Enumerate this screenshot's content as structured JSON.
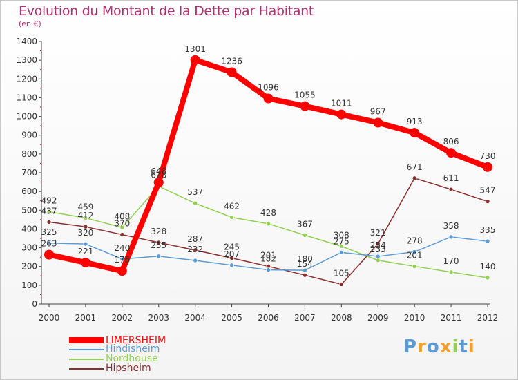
{
  "title": "Evolution du Montant de la Dette par Habitant",
  "subtitle": "(en €)",
  "logo_text": "Proxiti",
  "chart_data": {
    "type": "line",
    "title": "Evolution du Montant de la Dette par Habitant",
    "ylabel": "(en €)",
    "xlabel": "",
    "ylim": [
      0,
      1400
    ],
    "yticks": [
      0,
      100,
      200,
      300,
      400,
      500,
      600,
      700,
      800,
      900,
      1000,
      1100,
      1200,
      1300,
      1400
    ],
    "grid": false,
    "legend_position": "bottom-left",
    "categories": [
      "2000",
      "2001",
      "2002",
      "2003",
      "2004",
      "2005",
      "2006",
      "2007",
      "2008",
      "2009",
      "2010",
      "2011",
      "2012"
    ],
    "series": [
      {
        "name": "LIMERSHEIM",
        "color": "#ff0000",
        "values": [
          263,
          221,
          176,
          648,
          1301,
          1236,
          1096,
          1055,
          1011,
          967,
          913,
          806,
          730
        ]
      },
      {
        "name": "Hindisheim",
        "color": "#5b9bd5",
        "values": [
          325,
          320,
          240,
          255,
          232,
          207,
          182,
          180,
          275,
          254,
          278,
          358,
          335
        ]
      },
      {
        "name": "Nordhouse",
        "color": "#92d050",
        "values": [
          492,
          459,
          408,
          628,
          537,
          462,
          428,
          367,
          308,
          233,
          201,
          170,
          140
        ]
      },
      {
        "name": "Hipsheim",
        "color": "#8b2e2e",
        "values": [
          437,
          412,
          370,
          328,
          287,
          245,
          201,
          154,
          105,
          321,
          671,
          611,
          547
        ]
      }
    ],
    "point_labels": [
      [
        "263",
        "221",
        "176",
        "648",
        "1301",
        "1236",
        "1096",
        "1055",
        "1011",
        "967",
        "913",
        "806",
        "730"
      ],
      [
        "325",
        "320",
        "240",
        "255",
        "232",
        "207",
        "182",
        "180",
        "275",
        "254",
        "278",
        "358",
        "335"
      ],
      [
        "492",
        "459",
        "408",
        "628",
        "537",
        "462",
        "428",
        "367",
        "308",
        "233",
        "201",
        "170",
        "140"
      ],
      [
        "437",
        "412",
        "370",
        "328",
        "287",
        "245",
        "201",
        "154",
        "105",
        "321",
        "671",
        "611",
        "547"
      ]
    ]
  },
  "colors": {
    "title": "#b03070",
    "axis": "#333333",
    "label": "#333333"
  }
}
